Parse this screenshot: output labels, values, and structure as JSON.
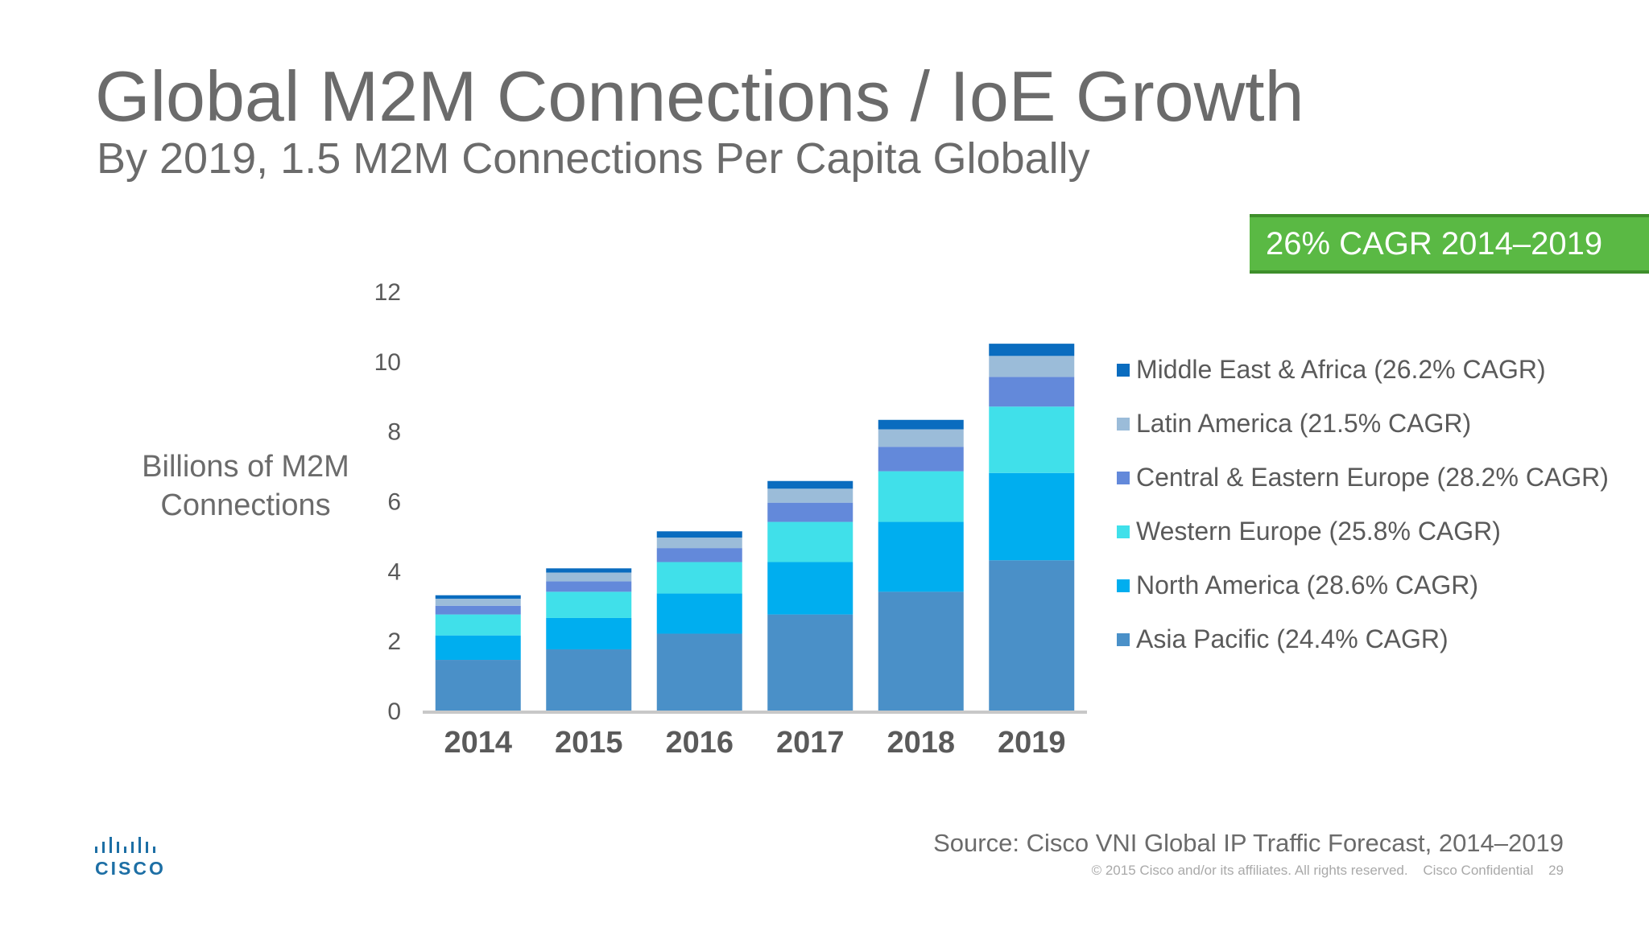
{
  "slide": {
    "title": "Global M2M Connections / IoE Growth",
    "subtitle": "By 2019, 1.5 M2M Connections Per Capita Globally",
    "cagr_badge": "26% CAGR 2014–2019",
    "source": "Source: Cisco VNI Global IP Traffic Forecast, 2014–2019",
    "copyright": "© 2015  Cisco and/or its affiliates. All rights reserved.",
    "confidential": "Cisco Confidential",
    "page_number": "29",
    "logo_text": "CISCO"
  },
  "colors": {
    "badge": "#5ab944",
    "title_text": "#6b6b6b"
  },
  "chart_data": {
    "type": "bar",
    "stacked": true,
    "ylabel": "Billions of M2M Connections",
    "ylim": [
      0,
      12
    ],
    "yticks": [
      0,
      2,
      4,
      6,
      8,
      10,
      12
    ],
    "grid": false,
    "legend_position": "right",
    "categories": [
      "2014",
      "2015",
      "2016",
      "2017",
      "2018",
      "2019"
    ],
    "series": [
      {
        "name": "Asia Pacific (24.4% CAGR)",
        "color": "#4a90c8",
        "values": [
          1.45,
          1.75,
          2.2,
          2.75,
          3.4,
          4.3
        ]
      },
      {
        "name": "North America (28.6% CAGR)",
        "color": "#00aeef",
        "values": [
          0.7,
          0.9,
          1.15,
          1.5,
          2.0,
          2.5
        ]
      },
      {
        "name": "Western Europe (25.8% CAGR)",
        "color": "#40e0ea",
        "values": [
          0.6,
          0.75,
          0.9,
          1.15,
          1.45,
          1.9
        ]
      },
      {
        "name": "Central & Eastern Europe (28.2% CAGR)",
        "color": "#6389da",
        "values": [
          0.25,
          0.3,
          0.4,
          0.55,
          0.7,
          0.85
        ]
      },
      {
        "name": "Latin America (21.5% CAGR)",
        "color": "#9bbcd9",
        "values": [
          0.2,
          0.25,
          0.3,
          0.4,
          0.5,
          0.6
        ]
      },
      {
        "name": "Middle East & Africa (26.2% CAGR)",
        "color": "#0a6cbf",
        "values": [
          0.1,
          0.12,
          0.18,
          0.22,
          0.27,
          0.35
        ]
      }
    ]
  }
}
